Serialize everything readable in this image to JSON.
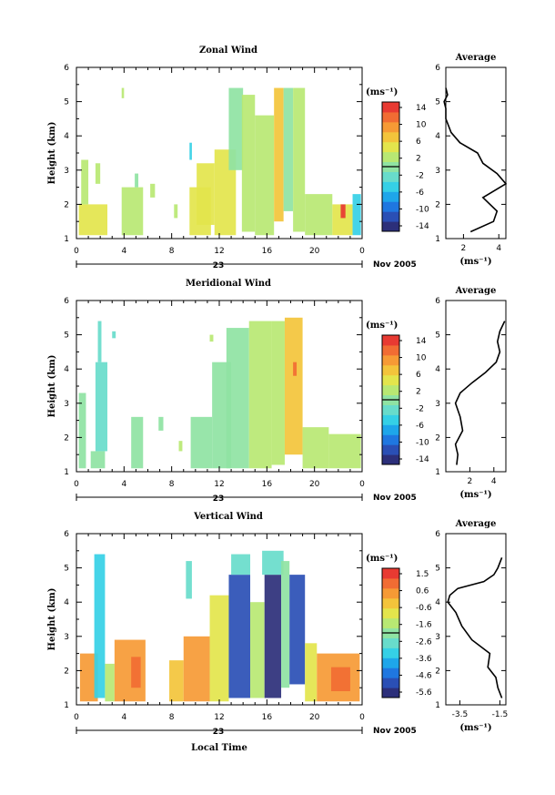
{
  "colors": {
    "colormap": [
      "#2c2f7a",
      "#2a4fb5",
      "#1f77e0",
      "#1ea6ea",
      "#35d0e6",
      "#68dccb",
      "#8fe3a3",
      "#b8e873",
      "#e3e54c",
      "#f3c43b",
      "#f69a35",
      "#f16c33",
      "#e83a32"
    ]
  },
  "panels": [
    {
      "title": "Zonal Wind",
      "ylabel": "Height (km)",
      "yticks": [
        "1",
        "2",
        "3",
        "4",
        "5",
        "6"
      ],
      "xticks": [
        "0",
        "4",
        "8",
        "12",
        "16",
        "20",
        "0"
      ],
      "day_label": "23",
      "date_label": "Nov 2005",
      "xlabel": "",
      "unit_label": "(ms⁻¹)",
      "colorbar_ticks": [
        "14",
        "10",
        "6",
        "2",
        "-2",
        "-6",
        "-10",
        "-14"
      ],
      "avg_title": "Average",
      "avg_xticks": [
        "2",
        "4"
      ],
      "avg_xlabel": "(ms⁻¹)",
      "avg_yticks": [
        "1",
        "2",
        "3",
        "4",
        "5",
        "6"
      ]
    },
    {
      "title": "Meridional Wind",
      "ylabel": "Height (km)",
      "yticks": [
        "1",
        "2",
        "3",
        "4",
        "5",
        "6"
      ],
      "xticks": [
        "0",
        "4",
        "8",
        "12",
        "16",
        "20",
        "0"
      ],
      "day_label": "23",
      "date_label": "Nov 2005",
      "xlabel": "",
      "unit_label": "(ms⁻¹)",
      "colorbar_ticks": [
        "14",
        "10",
        "6",
        "2",
        "-2",
        "-6",
        "-10",
        "-14"
      ],
      "avg_title": "Average",
      "avg_xticks": [
        "2",
        "4"
      ],
      "avg_xlabel": "(ms⁻¹)",
      "avg_yticks": [
        "1",
        "2",
        "3",
        "4",
        "5",
        "6"
      ]
    },
    {
      "title": "Vertical Wind",
      "ylabel": "Height (km)",
      "yticks": [
        "1",
        "2",
        "3",
        "4",
        "5",
        "6"
      ],
      "xticks": [
        "0",
        "4",
        "8",
        "12",
        "16",
        "20",
        "0"
      ],
      "day_label": "23",
      "date_label": "Nov 2005",
      "xlabel": "Local Time",
      "unit_label": "(ms⁻¹)",
      "colorbar_ticks": [
        "1.5",
        "0.6",
        "-0.6",
        "-1.6",
        "-2.6",
        "-3.6",
        "-4.6",
        "-5.6"
      ],
      "avg_title": "Average",
      "avg_xticks": [
        "-3.5",
        "-1.5"
      ],
      "avg_xlabel": "(ms⁻¹)",
      "avg_yticks": [
        "1",
        "2",
        "3",
        "4",
        "5",
        "6"
      ]
    }
  ],
  "chart_data": [
    {
      "type": "heatmap",
      "title": "Zonal Wind",
      "xlabel": "",
      "ylabel": "Height (km)",
      "xlim": [
        0,
        24
      ],
      "ylim": [
        1,
        6
      ],
      "clim": [
        -16,
        16
      ],
      "colorbar_ticks": [
        14,
        10,
        6,
        2,
        -2,
        -6,
        -10,
        -14
      ],
      "cells": [
        {
          "x0": 0.2,
          "x1": 2.6,
          "y0": 1.1,
          "y1": 2.0,
          "v": 4
        },
        {
          "x0": 0.4,
          "x1": 1.0,
          "y0": 2.0,
          "y1": 3.3,
          "v": 2
        },
        {
          "x0": 1.6,
          "x1": 2.0,
          "y0": 2.6,
          "y1": 3.2,
          "v": 3
        },
        {
          "x0": 3.8,
          "x1": 5.6,
          "y0": 1.1,
          "y1": 2.5,
          "v": 3
        },
        {
          "x0": 4.9,
          "x1": 5.2,
          "y0": 2.5,
          "y1": 2.9,
          "v": 1
        },
        {
          "x0": 6.2,
          "x1": 6.6,
          "y0": 2.2,
          "y1": 2.6,
          "v": 3
        },
        {
          "x0": 8.2,
          "x1": 8.5,
          "y0": 1.6,
          "y1": 2.0,
          "v": 3
        },
        {
          "x0": 9.5,
          "x1": 11.3,
          "y0": 1.1,
          "y1": 2.5,
          "v": 4
        },
        {
          "x0": 9.5,
          "x1": 9.7,
          "y0": 3.3,
          "y1": 3.8,
          "v": -6
        },
        {
          "x0": 10.1,
          "x1": 11.6,
          "y0": 1.4,
          "y1": 3.2,
          "v": 5
        },
        {
          "x0": 11.6,
          "x1": 13.4,
          "y0": 1.1,
          "y1": 3.6,
          "v": 4
        },
        {
          "x0": 12.8,
          "x1": 14.0,
          "y0": 3.0,
          "y1": 5.4,
          "v": 1
        },
        {
          "x0": 13.9,
          "x1": 15.0,
          "y0": 1.2,
          "y1": 5.2,
          "v": 2
        },
        {
          "x0": 15.0,
          "x1": 16.6,
          "y0": 1.1,
          "y1": 4.6,
          "v": 3
        },
        {
          "x0": 16.6,
          "x1": 17.4,
          "y0": 1.5,
          "y1": 5.4,
          "v": 8
        },
        {
          "x0": 17.4,
          "x1": 18.2,
          "y0": 1.8,
          "y1": 5.4,
          "v": 1
        },
        {
          "x0": 18.2,
          "x1": 19.2,
          "y0": 1.2,
          "y1": 5.4,
          "v": 2
        },
        {
          "x0": 19.2,
          "x1": 21.5,
          "y0": 1.1,
          "y1": 2.3,
          "v": 3
        },
        {
          "x0": 21.5,
          "x1": 23.2,
          "y0": 1.1,
          "y1": 2.0,
          "v": 6
        },
        {
          "x0": 22.2,
          "x1": 22.6,
          "y0": 1.6,
          "y1": 2.0,
          "v": 14
        },
        {
          "x0": 23.2,
          "x1": 23.9,
          "y0": 1.1,
          "y1": 2.3,
          "v": -4
        },
        {
          "x0": 3.8,
          "x1": 4.0,
          "y0": 5.1,
          "y1": 5.4,
          "v": 2
        }
      ],
      "average": {
        "x_range": [
          1,
          4.4
        ],
        "height": [
          1.2,
          1.5,
          1.8,
          2.2,
          2.6,
          2.9,
          3.2,
          3.5,
          3.8,
          4.1,
          4.5,
          4.8,
          5.0,
          5.2,
          5.4
        ],
        "value": [
          2.4,
          3.7,
          3.9,
          3.1,
          4.4,
          3.9,
          3.1,
          2.8,
          1.8,
          1.3,
          1.0,
          1.0,
          0.9,
          1.1,
          1.0
        ]
      }
    },
    {
      "type": "heatmap",
      "title": "Meridional Wind",
      "xlabel": "",
      "ylabel": "Height (km)",
      "xlim": [
        0,
        24
      ],
      "ylim": [
        1,
        6
      ],
      "clim": [
        -16,
        16
      ],
      "colorbar_ticks": [
        14,
        10,
        6,
        2,
        -2,
        -6,
        -10,
        -14
      ],
      "cells": [
        {
          "x0": 0.2,
          "x1": 0.8,
          "y0": 1.1,
          "y1": 3.3,
          "v": -1
        },
        {
          "x0": 1.2,
          "x1": 2.4,
          "y0": 1.1,
          "y1": 1.6,
          "v": 1
        },
        {
          "x0": 1.6,
          "x1": 2.6,
          "y0": 1.6,
          "y1": 4.2,
          "v": -3
        },
        {
          "x0": 1.8,
          "x1": 2.1,
          "y0": 4.2,
          "y1": 5.4,
          "v": -2
        },
        {
          "x0": 3.0,
          "x1": 3.3,
          "y0": 4.9,
          "y1": 5.1,
          "v": -2
        },
        {
          "x0": 4.6,
          "x1": 5.6,
          "y0": 1.1,
          "y1": 2.6,
          "v": 0
        },
        {
          "x0": 6.9,
          "x1": 7.3,
          "y0": 2.2,
          "y1": 2.6,
          "v": 1
        },
        {
          "x0": 8.6,
          "x1": 8.9,
          "y0": 1.6,
          "y1": 1.9,
          "v": 3
        },
        {
          "x0": 9.6,
          "x1": 11.4,
          "y0": 1.1,
          "y1": 2.6,
          "v": 1
        },
        {
          "x0": 11.4,
          "x1": 13.0,
          "y0": 1.1,
          "y1": 4.2,
          "v": 0
        },
        {
          "x0": 12.6,
          "x1": 14.5,
          "y0": 1.1,
          "y1": 5.2,
          "v": 1
        },
        {
          "x0": 14.5,
          "x1": 16.4,
          "y0": 1.1,
          "y1": 5.4,
          "v": 2
        },
        {
          "x0": 16.4,
          "x1": 17.5,
          "y0": 1.2,
          "y1": 5.4,
          "v": 3
        },
        {
          "x0": 17.5,
          "x1": 19.0,
          "y0": 1.5,
          "y1": 5.5,
          "v": 7
        },
        {
          "x0": 18.2,
          "x1": 18.5,
          "y0": 3.8,
          "y1": 4.2,
          "v": 12
        },
        {
          "x0": 19.0,
          "x1": 21.2,
          "y0": 1.1,
          "y1": 2.3,
          "v": 2
        },
        {
          "x0": 21.2,
          "x1": 23.9,
          "y0": 1.1,
          "y1": 2.1,
          "v": 3
        },
        {
          "x0": 11.2,
          "x1": 11.5,
          "y0": 4.8,
          "y1": 5.0,
          "v": 3
        }
      ],
      "average": {
        "x_range": [
          0,
          5
        ],
        "height": [
          1.2,
          1.5,
          1.8,
          2.2,
          2.6,
          3.0,
          3.3,
          3.6,
          3.9,
          4.2,
          4.5,
          4.8,
          5.1,
          5.4
        ],
        "value": [
          0.9,
          1.0,
          0.8,
          1.4,
          1.2,
          0.8,
          1.2,
          2.2,
          3.3,
          4.2,
          4.5,
          4.3,
          4.5,
          4.9
        ]
      }
    },
    {
      "type": "heatmap",
      "title": "Vertical Wind",
      "xlabel": "Local Time",
      "ylabel": "Height (km)",
      "xlim": [
        0,
        24
      ],
      "ylim": [
        1,
        6
      ],
      "clim": [
        -6.1,
        2.0
      ],
      "colorbar_ticks": [
        1.5,
        0.6,
        -0.6,
        -1.6,
        -2.6,
        -3.6,
        -4.6,
        -5.6
      ],
      "cells": [
        {
          "x0": 0.3,
          "x1": 1.8,
          "y0": 1.1,
          "y1": 2.5,
          "v": 0.4
        },
        {
          "x0": 1.5,
          "x1": 2.4,
          "y0": 1.2,
          "y1": 5.4,
          "v": -3.6
        },
        {
          "x0": 2.4,
          "x1": 3.2,
          "y0": 1.1,
          "y1": 2.2,
          "v": -1.6
        },
        {
          "x0": 3.2,
          "x1": 5.8,
          "y0": 1.1,
          "y1": 2.9,
          "v": 0.2
        },
        {
          "x0": 4.6,
          "x1": 5.4,
          "y0": 1.5,
          "y1": 2.4,
          "v": 1.0
        },
        {
          "x0": 7.8,
          "x1": 9.0,
          "y0": 1.1,
          "y1": 2.3,
          "v": 0.0
        },
        {
          "x0": 9.2,
          "x1": 9.7,
          "y0": 4.1,
          "y1": 5.2,
          "v": -2.6
        },
        {
          "x0": 9.0,
          "x1": 11.2,
          "y0": 1.1,
          "y1": 3.0,
          "v": 0.2
        },
        {
          "x0": 11.2,
          "x1": 12.8,
          "y0": 1.1,
          "y1": 4.2,
          "v": -1.0
        },
        {
          "x0": 12.8,
          "x1": 14.6,
          "y0": 1.2,
          "y1": 4.8,
          "v": -5.4
        },
        {
          "x0": 13.0,
          "x1": 14.6,
          "y0": 4.8,
          "y1": 5.4,
          "v": -2.6
        },
        {
          "x0": 14.6,
          "x1": 15.8,
          "y0": 1.2,
          "y1": 4.0,
          "v": -1.6
        },
        {
          "x0": 15.8,
          "x1": 17.2,
          "y0": 1.2,
          "y1": 4.8,
          "v": -5.6
        },
        {
          "x0": 15.6,
          "x1": 17.4,
          "y0": 4.8,
          "y1": 5.5,
          "v": -2.4
        },
        {
          "x0": 17.2,
          "x1": 17.9,
          "y0": 1.5,
          "y1": 5.2,
          "v": -2.2
        },
        {
          "x0": 17.9,
          "x1": 19.2,
          "y0": 1.6,
          "y1": 4.8,
          "v": -5.4
        },
        {
          "x0": 19.2,
          "x1": 20.2,
          "y0": 1.1,
          "y1": 2.8,
          "v": -1.0
        },
        {
          "x0": 20.2,
          "x1": 23.8,
          "y0": 1.1,
          "y1": 2.5,
          "v": 0.6
        },
        {
          "x0": 21.4,
          "x1": 23.0,
          "y0": 1.4,
          "y1": 2.1,
          "v": 1.2
        }
      ],
      "average": {
        "x_range": [
          -4.2,
          -1.2
        ],
        "height": [
          1.2,
          1.5,
          1.8,
          2.1,
          2.5,
          2.9,
          3.3,
          3.7,
          4.0,
          4.2,
          4.4,
          4.6,
          4.8,
          5.0,
          5.3
        ],
        "value": [
          -1.4,
          -1.6,
          -1.7,
          -2.1,
          -2.0,
          -2.9,
          -3.4,
          -3.7,
          -4.1,
          -4.0,
          -3.6,
          -2.3,
          -1.8,
          -1.6,
          -1.4
        ]
      }
    }
  ]
}
